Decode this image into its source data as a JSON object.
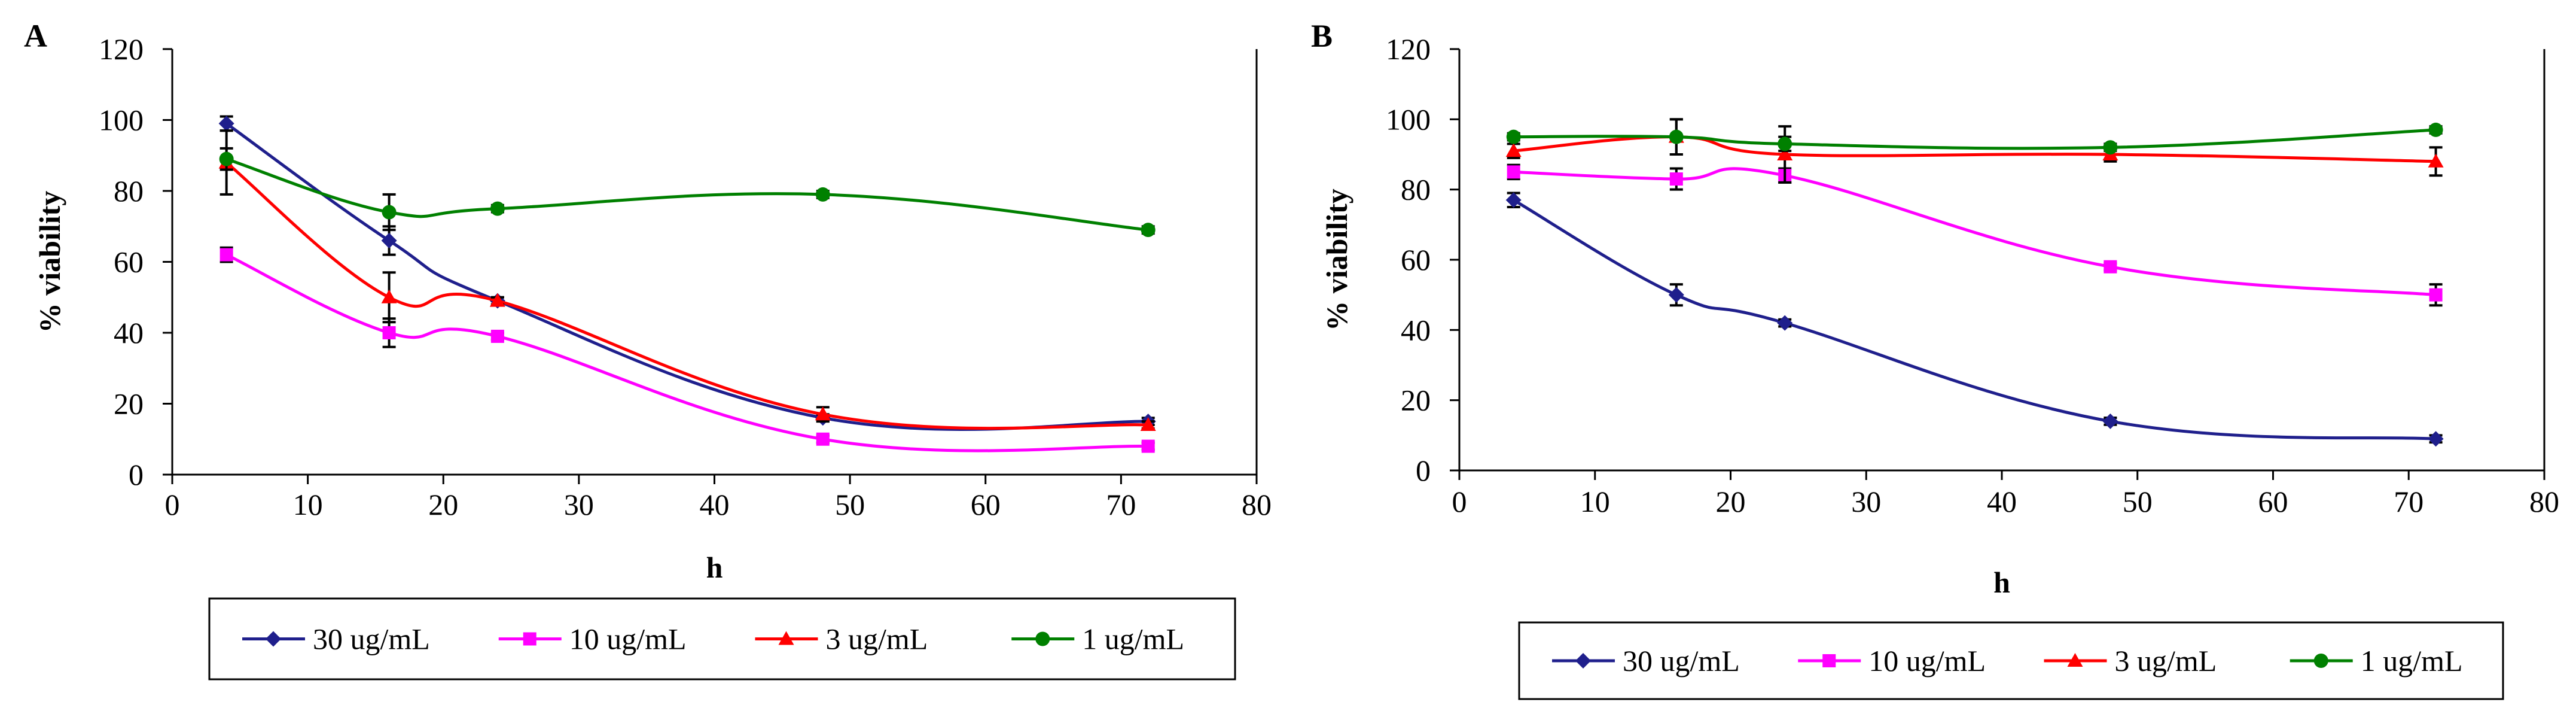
{
  "figure": {
    "panels": [
      {
        "id": "A",
        "label": "A"
      },
      {
        "id": "B",
        "label": "B"
      }
    ]
  },
  "series_styles": [
    {
      "name": "30 ug/mL",
      "color": "#1f1f8c",
      "marker": "diamond"
    },
    {
      "name": "10 ug/mL",
      "color": "#ff00ff",
      "marker": "square"
    },
    {
      "name": "3 ug/mL",
      "color": "#ff0000",
      "marker": "triangle"
    },
    {
      "name": "1 ug/mL",
      "color": "#008000",
      "marker": "circle"
    }
  ],
  "chart_data": [
    {
      "panel": "A",
      "type": "line",
      "title": "",
      "xlabel": "h",
      "ylabel": "% viability",
      "xlim": [
        0,
        80
      ],
      "ylim": [
        0,
        120
      ],
      "xticks": [
        0,
        10,
        20,
        30,
        40,
        50,
        60,
        70,
        80
      ],
      "yticks": [
        0,
        20,
        40,
        60,
        80,
        100,
        120
      ],
      "grid": false,
      "legend": "bottom",
      "x": [
        4,
        16,
        24,
        48,
        72
      ],
      "series": [
        {
          "name": "30 ug/mL",
          "values": [
            99,
            66,
            49,
            16,
            15
          ],
          "errors": [
            2,
            4,
            1,
            1,
            1
          ]
        },
        {
          "name": "10 ug/mL",
          "values": [
            62,
            40,
            39,
            10,
            8
          ],
          "errors": [
            2,
            4,
            1,
            1,
            1
          ]
        },
        {
          "name": "3 ug/mL",
          "values": [
            88,
            50,
            49,
            17,
            14
          ],
          "errors": [
            9,
            7,
            1,
            2,
            1
          ]
        },
        {
          "name": "1 ug/mL",
          "values": [
            89,
            74,
            75,
            79,
            69
          ],
          "errors": [
            3,
            5,
            1,
            1,
            1
          ]
        }
      ]
    },
    {
      "panel": "B",
      "type": "line",
      "title": "",
      "xlabel": "h",
      "ylabel": "% viability",
      "xlim": [
        0,
        80
      ],
      "ylim": [
        0,
        120
      ],
      "xticks": [
        0,
        10,
        20,
        30,
        40,
        50,
        60,
        70,
        80
      ],
      "yticks": [
        0,
        20,
        40,
        60,
        80,
        100,
        120
      ],
      "grid": false,
      "legend": "bottom",
      "x": [
        4,
        16,
        24,
        48,
        72
      ],
      "series": [
        {
          "name": "30 ug/mL",
          "values": [
            77,
            50,
            42,
            14,
            9
          ],
          "errors": [
            2,
            3,
            1,
            1,
            1
          ]
        },
        {
          "name": "10 ug/mL",
          "values": [
            85,
            83,
            84,
            58,
            50
          ],
          "errors": [
            2,
            3,
            2,
            1,
            3
          ]
        },
        {
          "name": "3 ug/mL",
          "values": [
            91,
            95,
            90,
            90,
            88
          ],
          "errors": [
            2,
            5,
            8,
            2,
            4
          ]
        },
        {
          "name": "1 ug/mL",
          "values": [
            95,
            95,
            93,
            92,
            97
          ],
          "errors": [
            1,
            5,
            2,
            1,
            1
          ]
        }
      ]
    }
  ]
}
